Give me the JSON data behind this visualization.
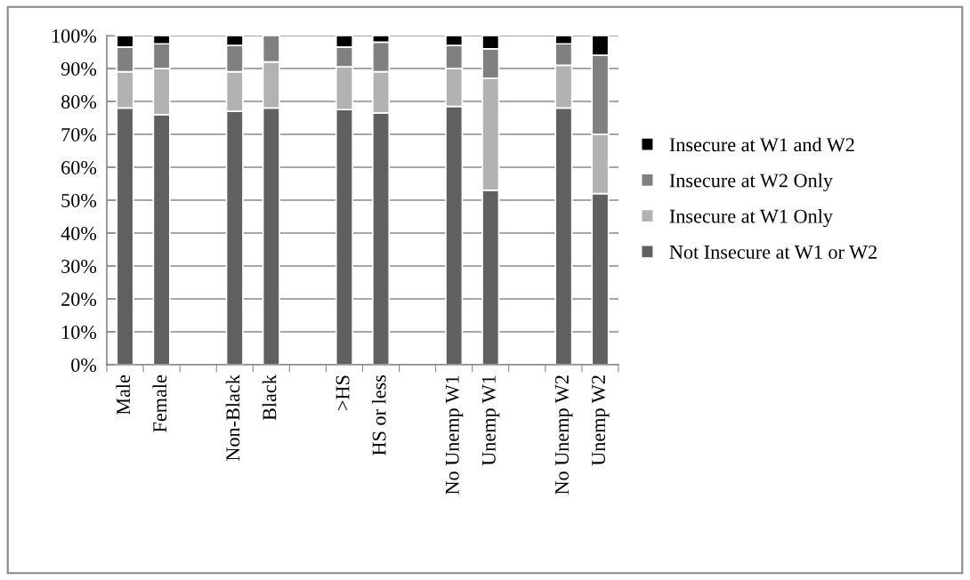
{
  "chart_data": {
    "type": "bar",
    "stacked": true,
    "categories": [
      "Male",
      "Female",
      null,
      "Non-Black",
      "Black",
      null,
      ">HS",
      "HS or less",
      null,
      "No Unemp W1",
      "Unemp W1",
      null,
      "No Unemp W2",
      "Unemp W2"
    ],
    "series": [
      {
        "name": "Not Insecure at W1 or W2",
        "color": "#606060",
        "values": [
          78,
          76,
          null,
          77,
          78,
          null,
          77.5,
          76.5,
          null,
          78.5,
          53,
          null,
          78,
          52
        ]
      },
      {
        "name": "Insecure at W1 Only",
        "color": "#b2b2b2",
        "values": [
          11,
          14,
          null,
          12,
          14,
          null,
          13,
          12.5,
          null,
          11.5,
          34,
          null,
          13,
          18
        ]
      },
      {
        "name": "Insecure at W2 Only",
        "color": "#808080",
        "values": [
          7.5,
          7.5,
          null,
          8,
          8,
          null,
          6,
          9,
          null,
          7,
          9,
          null,
          6.5,
          24
        ]
      },
      {
        "name": "Insecure at W1 and W2",
        "color": "#000000",
        "values": [
          3.5,
          2.5,
          null,
          3,
          null,
          null,
          3.5,
          2,
          null,
          3,
          4,
          null,
          2.5,
          6
        ]
      }
    ],
    "ylim": [
      0,
      100
    ],
    "yticks": [
      {
        "value": 0,
        "label": "0%"
      },
      {
        "value": 10,
        "label": "10%"
      },
      {
        "value": 20,
        "label": "20%"
      },
      {
        "value": 30,
        "label": "30%"
      },
      {
        "value": 40,
        "label": "40%"
      },
      {
        "value": 50,
        "label": "50%"
      },
      {
        "value": 60,
        "label": "60%"
      },
      {
        "value": 70,
        "label": "70%"
      },
      {
        "value": 80,
        "label": "80%"
      },
      {
        "value": 90,
        "label": "90%"
      },
      {
        "value": 100,
        "label": "100%"
      }
    ],
    "grid": "y",
    "legend": "right"
  }
}
